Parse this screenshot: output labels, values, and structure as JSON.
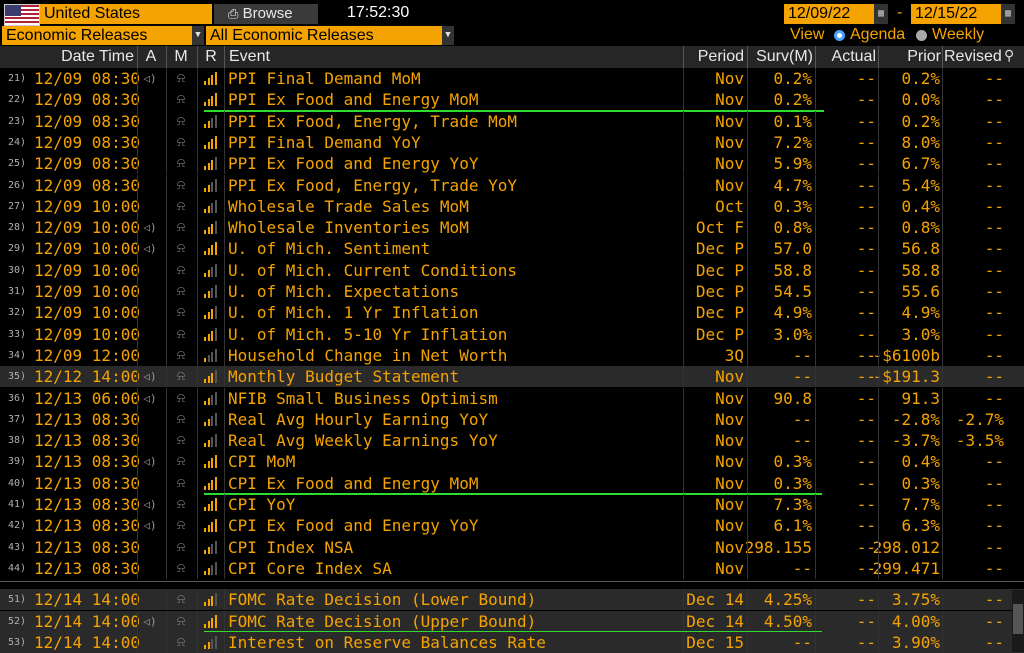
{
  "toolbar": {
    "country": "United States",
    "browse_label": "Browse",
    "time": "17:52:30",
    "start_date": "12/09/22",
    "date_dash": "-",
    "end_date": "12/15/22",
    "category": "Economic Releases",
    "release_filter": "All Economic Releases",
    "view_label": "View",
    "agenda_label": "Agenda",
    "weekly_label": "Weekly"
  },
  "columns": {
    "datetime": "Date Time",
    "a": "A",
    "m": "M",
    "r": "R",
    "event": "Event",
    "period": "Period",
    "surv": "Surv(M)",
    "actual": "Actual",
    "prior": "Prior",
    "revised": "Revised"
  },
  "rows": [
    {
      "n": "21)",
      "date": "12/09 08:30",
      "alert": true,
      "event": "PPI Final Demand MoM",
      "period": "Nov",
      "surv": "0.2%",
      "actual": "--",
      "prior": "0.2%",
      "revised": "--",
      "bars": 4,
      "hl": false
    },
    {
      "n": "22)",
      "date": "12/09 08:30",
      "alert": false,
      "event": "PPI Ex Food and Energy MoM",
      "period": "Nov",
      "surv": "0.2%",
      "actual": "--",
      "prior": "0.0%",
      "revised": "--",
      "bars": 4,
      "hl": false
    },
    {
      "n": "23)",
      "date": "12/09 08:30",
      "alert": false,
      "event": "PPI Ex Food, Energy, Trade MoM",
      "period": "Nov",
      "surv": "0.1%",
      "actual": "--",
      "prior": "0.2%",
      "revised": "--",
      "bars": 2,
      "hl": false
    },
    {
      "n": "24)",
      "date": "12/09 08:30",
      "alert": false,
      "event": "PPI Final Demand YoY",
      "period": "Nov",
      "surv": "7.2%",
      "actual": "--",
      "prior": "8.0%",
      "revised": "--",
      "bars": 4,
      "hl": false
    },
    {
      "n": "25)",
      "date": "12/09 08:30",
      "alert": false,
      "event": "PPI Ex Food and Energy YoY",
      "period": "Nov",
      "surv": "5.9%",
      "actual": "--",
      "prior": "6.7%",
      "revised": "--",
      "bars": 3,
      "hl": false
    },
    {
      "n": "26)",
      "date": "12/09 08:30",
      "alert": false,
      "event": "PPI Ex Food, Energy, Trade YoY",
      "period": "Nov",
      "surv": "4.7%",
      "actual": "--",
      "prior": "5.4%",
      "revised": "--",
      "bars": 2,
      "hl": false
    },
    {
      "n": "27)",
      "date": "12/09 10:00",
      "alert": false,
      "event": "Wholesale Trade Sales MoM",
      "period": "Oct",
      "surv": "0.3%",
      "actual": "--",
      "prior": "0.4%",
      "revised": "--",
      "bars": 2,
      "hl": false
    },
    {
      "n": "28)",
      "date": "12/09 10:00",
      "alert": true,
      "event": "Wholesale Inventories MoM",
      "period": "Oct F",
      "surv": "0.8%",
      "actual": "--",
      "prior": "0.8%",
      "revised": "--",
      "bars": 3,
      "hl": false
    },
    {
      "n": "29)",
      "date": "12/09 10:00",
      "alert": true,
      "event": "U. of Mich. Sentiment",
      "period": "Dec P",
      "surv": "57.0",
      "actual": "--",
      "prior": "56.8",
      "revised": "--",
      "bars": 4,
      "hl": false
    },
    {
      "n": "30)",
      "date": "12/09 10:00",
      "alert": false,
      "event": "U. of Mich. Current Conditions",
      "period": "Dec P",
      "surv": "58.8",
      "actual": "--",
      "prior": "58.8",
      "revised": "--",
      "bars": 2,
      "hl": false
    },
    {
      "n": "31)",
      "date": "12/09 10:00",
      "alert": false,
      "event": "U. of Mich. Expectations",
      "period": "Dec P",
      "surv": "54.5",
      "actual": "--",
      "prior": "55.6",
      "revised": "--",
      "bars": 2,
      "hl": false
    },
    {
      "n": "32)",
      "date": "12/09 10:00",
      "alert": false,
      "event": "U. of Mich. 1 Yr Inflation",
      "period": "Dec P",
      "surv": "4.9%",
      "actual": "--",
      "prior": "4.9%",
      "revised": "--",
      "bars": 3,
      "hl": false
    },
    {
      "n": "33)",
      "date": "12/09 10:00",
      "alert": false,
      "event": "U. of Mich. 5-10 Yr Inflation",
      "period": "Dec P",
      "surv": "3.0%",
      "actual": "--",
      "prior": "3.0%",
      "revised": "--",
      "bars": 3,
      "hl": false
    },
    {
      "n": "34)",
      "date": "12/09 12:00",
      "alert": false,
      "event": "Household Change in Net Worth",
      "period": "3Q",
      "surv": "--",
      "actual": "--",
      "prior": "-$6100b",
      "revised": "--",
      "bars": 1,
      "hl": false
    },
    {
      "n": "35)",
      "date": "12/12 14:00",
      "alert": true,
      "event": "Monthly Budget Statement",
      "period": "Nov",
      "surv": "--",
      "actual": "--",
      "prior": "-$191.3",
      "revised": "--",
      "bars": 3,
      "hl": true
    },
    {
      "n": "36)",
      "date": "12/13 06:00",
      "alert": true,
      "event": "NFIB Small Business Optimism",
      "period": "Nov",
      "surv": "90.8",
      "actual": "--",
      "prior": "91.3",
      "revised": "--",
      "bars": 2,
      "hl": false
    },
    {
      "n": "37)",
      "date": "12/13 08:30",
      "alert": false,
      "event": "Real Avg Hourly Earning YoY",
      "period": "Nov",
      "surv": "--",
      "actual": "--",
      "prior": "-2.8%",
      "revised": "-2.7%",
      "bars": 2,
      "hl": false
    },
    {
      "n": "38)",
      "date": "12/13 08:30",
      "alert": false,
      "event": "Real Avg Weekly Earnings YoY",
      "period": "Nov",
      "surv": "--",
      "actual": "--",
      "prior": "-3.7%",
      "revised": "-3.5%",
      "bars": 2,
      "hl": false
    },
    {
      "n": "39)",
      "date": "12/13 08:30",
      "alert": true,
      "event": "CPI MoM",
      "period": "Nov",
      "surv": "0.3%",
      "actual": "--",
      "prior": "0.4%",
      "revised": "--",
      "bars": 4,
      "hl": false
    },
    {
      "n": "40)",
      "date": "12/13 08:30",
      "alert": false,
      "event": "CPI Ex Food and Energy MoM",
      "period": "Nov",
      "surv": "0.3%",
      "actual": "--",
      "prior": "0.3%",
      "revised": "--",
      "bars": 4,
      "hl": false
    },
    {
      "n": "41)",
      "date": "12/13 08:30",
      "alert": true,
      "event": "CPI YoY",
      "period": "Nov",
      "surv": "7.3%",
      "actual": "--",
      "prior": "7.7%",
      "revised": "--",
      "bars": 4,
      "hl": false
    },
    {
      "n": "42)",
      "date": "12/13 08:30",
      "alert": true,
      "event": "CPI Ex Food and Energy YoY",
      "period": "Nov",
      "surv": "6.1%",
      "actual": "--",
      "prior": "6.3%",
      "revised": "--",
      "bars": 4,
      "hl": false
    },
    {
      "n": "43)",
      "date": "12/13 08:30",
      "alert": false,
      "event": "CPI Index NSA",
      "period": "Nov",
      "surv": "298.155",
      "actual": "--",
      "prior": "298.012",
      "revised": "--",
      "bars": 2,
      "hl": false
    },
    {
      "n": "44)",
      "date": "12/13 08:30",
      "alert": false,
      "event": "CPI Core Index SA",
      "period": "Nov",
      "surv": "--",
      "actual": "--",
      "prior": "299.471",
      "revised": "--",
      "bars": 2,
      "hl": false
    },
    {
      "n": "51)",
      "date": "12/14 14:00",
      "alert": false,
      "event": "FOMC Rate Decision (Lower Bound)",
      "period": "Dec 14",
      "surv": "4.25%",
      "actual": "--",
      "prior": "3.75%",
      "revised": "--",
      "bars": 3,
      "hl": true
    },
    {
      "n": "52)",
      "date": "12/14 14:00",
      "alert": true,
      "event": "FOMC Rate Decision (Upper Bound)",
      "period": "Dec 14",
      "surv": "4.50%",
      "actual": "--",
      "prior": "4.00%",
      "revised": "--",
      "bars": 4,
      "hl": true
    },
    {
      "n": "53)",
      "date": "12/14 14:00",
      "alert": false,
      "event": "Interest on Reserve Balances Rate",
      "period": "Dec 15",
      "surv": "--",
      "actual": "--",
      "prior": "3.90%",
      "revised": "--",
      "bars": 2,
      "hl": true
    }
  ],
  "colors": {
    "amber": "#f5a300",
    "highlight": "#2ddc2d",
    "row_alt": "#2a2a2a"
  },
  "icons": {
    "alert": "speaker-icon",
    "monitor": "bell-icon",
    "relevance": "signal-bars-icon",
    "calendar": "calendar-icon",
    "search": "person-search-icon"
  }
}
